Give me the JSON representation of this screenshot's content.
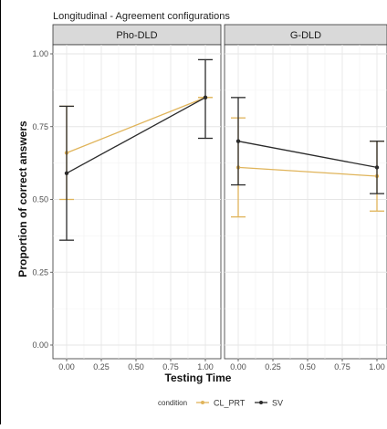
{
  "chart_data": {
    "type": "line",
    "title": "Longitudinal - Agreement configurations",
    "xlabel": "Testing Time",
    "ylabel": "Proportion of correct answers",
    "xlim": [
      0,
      1
    ],
    "ylim": [
      0,
      1
    ],
    "x_ticks": [
      "0.00",
      "0.25",
      "0.50",
      "0.75",
      "1.00"
    ],
    "y_ticks": [
      "0.00",
      "0.25",
      "0.50",
      "0.75",
      "1.00"
    ],
    "grid": true,
    "legend": {
      "title": "condition",
      "position": "bottom"
    },
    "series": [
      {
        "name": "CL_PRT",
        "color": "#E0B45A"
      },
      {
        "name": "SV",
        "color": "#2b2b2b"
      }
    ],
    "panels": [
      {
        "label": "Pho-DLD",
        "data": [
          {
            "series": "CL_PRT",
            "points": [
              {
                "x": 0,
                "y": 0.66,
                "lo": 0.5,
                "hi": 0.82
              },
              {
                "x": 1,
                "y": 0.85,
                "lo": 0.85,
                "hi": 0.85
              }
            ]
          },
          {
            "series": "SV",
            "points": [
              {
                "x": 0,
                "y": 0.59,
                "lo": 0.36,
                "hi": 0.82
              },
              {
                "x": 1,
                "y": 0.85,
                "lo": 0.71,
                "hi": 0.98
              }
            ]
          }
        ]
      },
      {
        "label": "G-DLD",
        "data": [
          {
            "series": "CL_PRT",
            "points": [
              {
                "x": 0,
                "y": 0.61,
                "lo": 0.44,
                "hi": 0.78
              },
              {
                "x": 1,
                "y": 0.58,
                "lo": 0.46,
                "hi": 0.7
              }
            ]
          },
          {
            "series": "SV",
            "points": [
              {
                "x": 0,
                "y": 0.7,
                "lo": 0.55,
                "hi": 0.85
              },
              {
                "x": 1,
                "y": 0.61,
                "lo": 0.52,
                "hi": 0.7
              }
            ]
          }
        ]
      }
    ]
  }
}
